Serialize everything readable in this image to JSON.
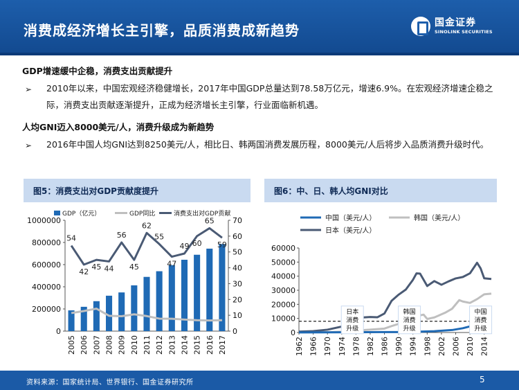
{
  "page": {
    "title": "消费成经济增长主引擎，品质消费成新趋势",
    "logo_cn": "国金证券",
    "logo_en": "SINOLINK SECURITIES",
    "bullet_glyph": "➢"
  },
  "sections": [
    {
      "heading": "GDP增速缓中企稳，消费支出贡献提升",
      "text": "2010年以来，中国宏观经济稳健增长，2017年中国GDP总量达到78.58万亿元，增速6.9%。在宏观经济增速企稳之际，消费支出贡献逐渐提升，正成为经济增长主引擎，行业面临新机遇。"
    },
    {
      "heading": "人均GNI迈入8000美元/人，消费升级成为新趋势",
      "text": "2016年中国人均GNI达到8250美元/人，相比日、韩两国消费发展历程，8000美元/人后将步入品质消费升级时代。"
    }
  ],
  "figures": {
    "fig5_title": "图5：消费支出对GDP贡献度提升",
    "fig6_title": "图6：中、日、韩人均GNI对比"
  },
  "footer": {
    "source": "资料来源：国家统计局、世界银行、国金证券研究所",
    "page_number": "5"
  },
  "colors": {
    "header": "#1d5eab",
    "bar": "#1f6ab5",
    "gdp_growth_line": "#bfbfbf",
    "consumption_line": "#4a5a74",
    "china_line": "#1f6ab5",
    "korea_line": "#bfbfbf",
    "japan_line": "#4a5a74",
    "panel_head": "#c9daf0"
  },
  "chart_data": [
    {
      "type": "bar",
      "categories": [
        "2005",
        "2006",
        "2007",
        "2008",
        "2009",
        "2010",
        "2011",
        "2012",
        "2013",
        "2014",
        "2015",
        "2016",
        "2017"
      ],
      "series": [
        {
          "name": "GDP（亿元）",
          "type": "bar",
          "axis": "left",
          "values": [
            187319,
            219439,
            270232,
            319516,
            349081,
            413030,
            489301,
            540367,
            595244,
            643974,
            689052,
            744127,
            785800
          ]
        },
        {
          "name": "GDP同比",
          "type": "line",
          "axis": "right",
          "values": [
            11.4,
            12.7,
            14.2,
            9.7,
            9.4,
            10.6,
            9.5,
            7.9,
            7.8,
            7.3,
            6.9,
            6.7,
            6.9
          ]
        },
        {
          "name": "消费支出对GDP贡献",
          "type": "line",
          "axis": "right",
          "values": [
            54,
            42,
            45,
            44,
            56,
            45,
            62,
            55,
            47,
            49,
            60,
            65,
            59
          ]
        }
      ],
      "data_labels": [
        "54",
        "42",
        "45",
        "44",
        "56",
        "45",
        "62",
        "55",
        "47",
        "49",
        "60",
        "65",
        "59"
      ],
      "ylim_left": [
        0,
        1000000
      ],
      "yticks_left": [
        "0",
        "200000",
        "400000",
        "600000",
        "800000",
        "1000000"
      ],
      "ylim_right": [
        0,
        70
      ],
      "yticks_right": [
        "0",
        "10",
        "20",
        "30",
        "40",
        "50",
        "60",
        "70"
      ],
      "legend": "top"
    },
    {
      "type": "line",
      "x_start": 1962,
      "x_end": 2016,
      "xticks": [
        "1962",
        "1966",
        "1970",
        "1974",
        "1978",
        "1982",
        "1986",
        "1990",
        "1994",
        "1998",
        "2002",
        "2006",
        "2010",
        "2014"
      ],
      "series": [
        {
          "name": "中国（美元/人）",
          "points": [
            [
              1962,
              70
            ],
            [
              1970,
              110
            ],
            [
              1978,
              200
            ],
            [
              1985,
              290
            ],
            [
              1990,
              330
            ],
            [
              1995,
              540
            ],
            [
              2000,
              940
            ],
            [
              2005,
              1760
            ],
            [
              2008,
              3040
            ],
            [
              2010,
              4340
            ],
            [
              2012,
              5940
            ],
            [
              2014,
              7520
            ],
            [
              2016,
              8250
            ]
          ]
        },
        {
          "name": "韩国（美元/人）",
          "points": [
            [
              1962,
              120
            ],
            [
              1970,
              270
            ],
            [
              1974,
              540
            ],
            [
              1978,
              1330
            ],
            [
              1982,
              2000
            ],
            [
              1986,
              2780
            ],
            [
              1988,
              4550
            ],
            [
              1990,
              6150
            ],
            [
              1993,
              8740
            ],
            [
              1995,
              11650
            ],
            [
              1997,
              12680
            ],
            [
              1998,
              9600
            ],
            [
              2000,
              10700
            ],
            [
              2003,
              14000
            ],
            [
              2005,
              16900
            ],
            [
              2007,
              23000
            ],
            [
              2008,
              22000
            ],
            [
              2010,
              21000
            ],
            [
              2012,
              23700
            ],
            [
              2014,
              27090
            ],
            [
              2016,
              27600
            ]
          ]
        },
        {
          "name": "日本（美元/人）",
          "points": [
            [
              1962,
              610
            ],
            [
              1966,
              1000
            ],
            [
              1970,
              2000
            ],
            [
              1974,
              4200
            ],
            [
              1978,
              7700
            ],
            [
              1980,
              10700
            ],
            [
              1982,
              11000
            ],
            [
              1984,
              10800
            ],
            [
              1986,
              13500
            ],
            [
              1988,
              22500
            ],
            [
              1990,
              26900
            ],
            [
              1992,
              30500
            ],
            [
              1994,
              37400
            ],
            [
              1995,
              42000
            ],
            [
              1996,
              41800
            ],
            [
              1998,
              33000
            ],
            [
              2000,
              36500
            ],
            [
              2002,
              33900
            ],
            [
              2004,
              36300
            ],
            [
              2006,
              38400
            ],
            [
              2008,
              39400
            ],
            [
              2010,
              42000
            ],
            [
              2012,
              49500
            ],
            [
              2013,
              45500
            ],
            [
              2014,
              38500
            ],
            [
              2016,
              38000
            ]
          ]
        }
      ],
      "reference_line": 8000,
      "ylim": [
        0,
        60000
      ],
      "yticks": [
        "0",
        "10000",
        "20000",
        "30000",
        "40000",
        "50000",
        "60000"
      ],
      "annotations": [
        {
          "text": "日本消费升级",
          "x": 1977,
          "lines": [
            "日本",
            "消费",
            "升级"
          ]
        },
        {
          "text": "韩国消费升级",
          "x": 1993,
          "lines": [
            "韩国",
            "消费",
            "升级"
          ]
        },
        {
          "text": "中国消费升级",
          "x": 2013,
          "lines": [
            "中国",
            "消费",
            "升级"
          ]
        }
      ],
      "legend": "top"
    }
  ]
}
